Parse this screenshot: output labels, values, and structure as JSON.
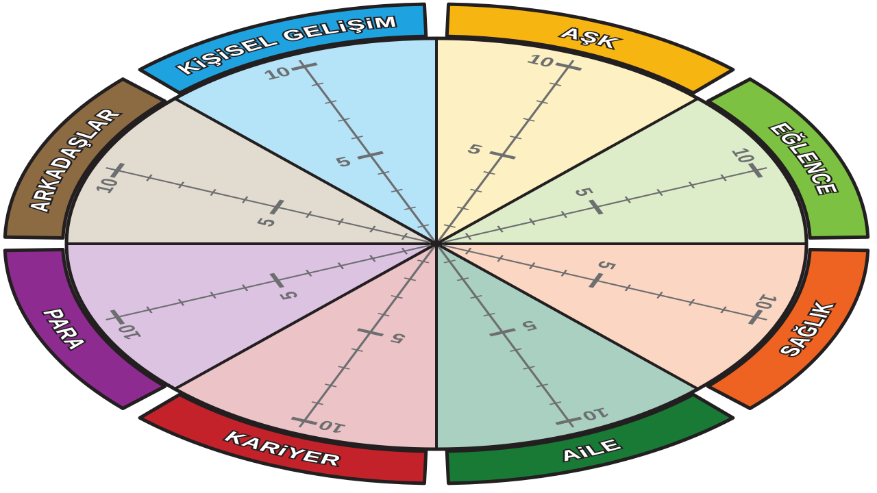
{
  "wheel": {
    "outline_color": "#231f20",
    "scale_color": "#6d6e70",
    "scale_labels": [
      "5",
      "10"
    ],
    "scale_max": 10,
    "segments": [
      {
        "label": "AŞK",
        "tab_color": "#f7b512",
        "fill": "#fdf0c2"
      },
      {
        "label": "KiŞiSEL GELiŞiM",
        "tab_color": "#1fa3e0",
        "fill": "#b5e3f7"
      },
      {
        "label": "ARKADAŞLAR",
        "tab_color": "#8c6a42",
        "fill": "#e2dbd0"
      },
      {
        "label": "PARA",
        "tab_color": "#8e2b90",
        "fill": "#dcc3e2"
      },
      {
        "label": "KARiYER",
        "tab_color": "#c4222b",
        "fill": "#ecc3c6"
      },
      {
        "label": "AiLE",
        "tab_color": "#197a36",
        "fill": "#a9d0c1"
      },
      {
        "label": "SAĞLIK",
        "tab_color": "#ef6322",
        "fill": "#fbd6c2"
      },
      {
        "label": "EĞLENCE",
        "tab_color": "#7cc142",
        "fill": "#ddedc9"
      }
    ]
  }
}
